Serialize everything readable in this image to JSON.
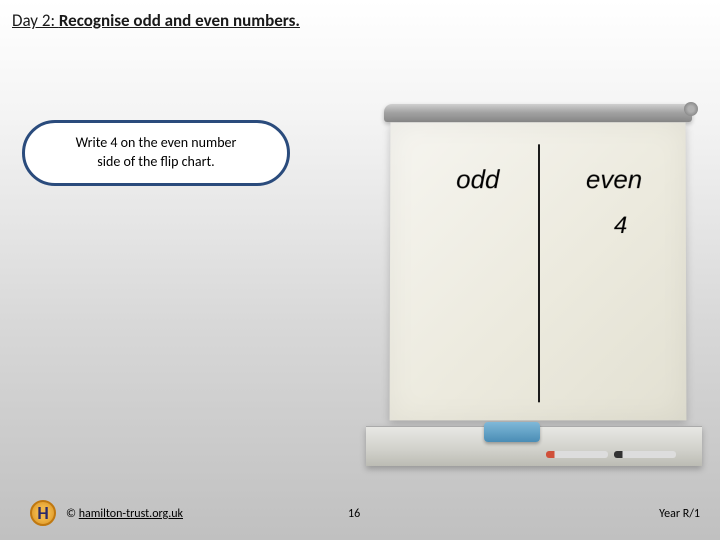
{
  "title": {
    "prefix": "Day 2: ",
    "main": "Recognise odd and even numbers."
  },
  "callout": {
    "line1": "Write 4 on the even number",
    "line2": "side of the flip chart.",
    "border_color": "#2a4b7c",
    "background": "#ffffff"
  },
  "flipchart": {
    "left_header": "odd",
    "right_header": "even",
    "left_values": [],
    "right_values": [
      "4"
    ],
    "paper_color": "#eceade",
    "divider_color": "#1a1a1a",
    "header_font": "Comic Sans MS",
    "header_fontsize": 26,
    "value_fontsize": 24,
    "tray_items": {
      "eraser_color": "#5a9ec4",
      "markers": [
        "#d0503a",
        "#333333"
      ]
    }
  },
  "footer": {
    "logo_letter": "H",
    "logo_bg": "#e8a838",
    "copyright_symbol": "©",
    "site": "hamilton-trust.org.uk",
    "page_number": "16",
    "year_label": "Year R/1"
  }
}
